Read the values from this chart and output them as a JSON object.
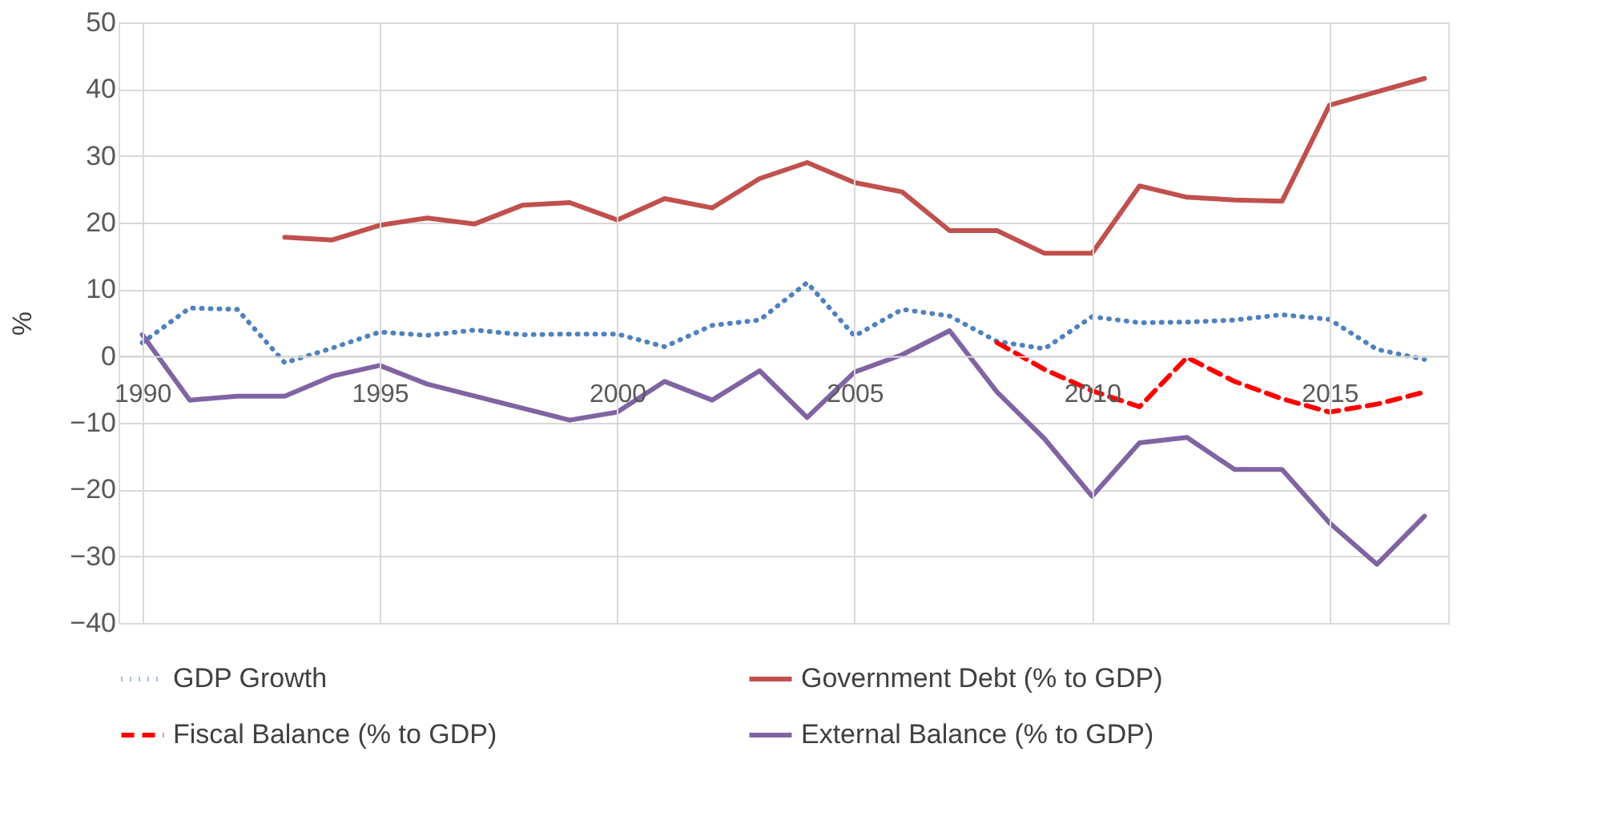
{
  "chart_data": {
    "type": "line",
    "ylabel": "%",
    "x": [
      1990,
      1991,
      1992,
      1993,
      1994,
      1995,
      1996,
      1997,
      1998,
      1999,
      2000,
      2001,
      2002,
      2003,
      2004,
      2005,
      2006,
      2007,
      2008,
      2009,
      2010,
      2011,
      2012,
      2013,
      2014,
      2015,
      2016,
      2017
    ],
    "xlim": [
      1989.5,
      2017.5
    ],
    "xticks": [
      1990,
      1995,
      2000,
      2005,
      2010,
      2015
    ],
    "ylim": [
      -40,
      50
    ],
    "yticks": [
      -40,
      -30,
      -20,
      -10,
      0,
      10,
      20,
      30,
      40,
      50
    ],
    "grid": true,
    "legend": "bottom",
    "marker": "none",
    "series": [
      {
        "name": "GDP Growth",
        "color": "#4f81bd",
        "line_style": "dotted",
        "values": [
          2.0,
          7.2,
          7.0,
          -1.0,
          1.2,
          3.6,
          3.1,
          3.9,
          3.2,
          3.3,
          3.3,
          1.4,
          4.6,
          5.4,
          11.0,
          3.0,
          7.0,
          6.0,
          2.2,
          1.1,
          5.9,
          5.0,
          5.1,
          5.4,
          6.2,
          5.5,
          1.0,
          -0.5
        ]
      },
      {
        "name": "Government Debt (% to GDP)",
        "color": "#c0504d",
        "line_style": "solid",
        "values": [
          null,
          null,
          null,
          17.8,
          17.4,
          19.6,
          20.7,
          19.8,
          22.6,
          23.0,
          20.4,
          23.6,
          22.2,
          26.6,
          29.0,
          26.0,
          24.6,
          18.8,
          18.8,
          15.4,
          15.4,
          25.5,
          23.8,
          23.4,
          23.2,
          37.6,
          39.6,
          41.6
        ]
      },
      {
        "name": "Fiscal Balance (% to GDP)",
        "color": "#ff0000",
        "line_style": "dashed",
        "values": [
          null,
          null,
          null,
          null,
          null,
          null,
          null,
          null,
          null,
          null,
          null,
          null,
          null,
          null,
          null,
          null,
          null,
          null,
          2.0,
          -2.0,
          -5.2,
          -7.6,
          -0.2,
          -3.8,
          -6.4,
          -8.4,
          -7.2,
          -5.4
        ]
      },
      {
        "name": "External Balance (% to GDP)",
        "color": "#8064a2",
        "line_style": "solid",
        "values": [
          3.2,
          -6.6,
          -6.0,
          -6.0,
          -3.0,
          -1.4,
          -4.2,
          -6.0,
          -7.8,
          -9.6,
          -8.4,
          -3.8,
          -6.6,
          -2.2,
          -9.2,
          -2.4,
          0.2,
          3.8,
          -5.4,
          -12.4,
          -21.0,
          -13.0,
          -12.2,
          -17.0,
          -17.0,
          -25.0,
          -31.2,
          -24.0
        ]
      }
    ]
  }
}
